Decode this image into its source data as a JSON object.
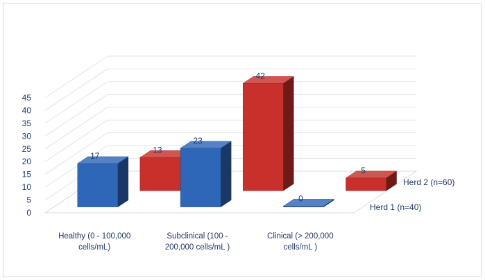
{
  "chart_data": {
    "type": "bar",
    "subtype": "3d-column",
    "title": "",
    "xlabel": "",
    "ylabel": "",
    "ylim": [
      0,
      45
    ],
    "yticks": [
      0,
      5,
      10,
      15,
      20,
      25,
      30,
      35,
      40,
      45
    ],
    "grid": true,
    "categories": [
      [
        "Healthy (0 - 100,000",
        "cells/mL)"
      ],
      [
        "Subclinical (100 -",
        "200,000 cells/mL )"
      ],
      [
        "Clinical (> 200,000",
        "cells/mL )"
      ]
    ],
    "series": [
      {
        "name": "Herd 1 (n=40)",
        "values": [
          17,
          23,
          0
        ],
        "color": "#2e66b8"
      },
      {
        "name": "Herd 2 (n=60)",
        "values": [
          13,
          42,
          5
        ],
        "color": "#c8302c"
      }
    ]
  }
}
